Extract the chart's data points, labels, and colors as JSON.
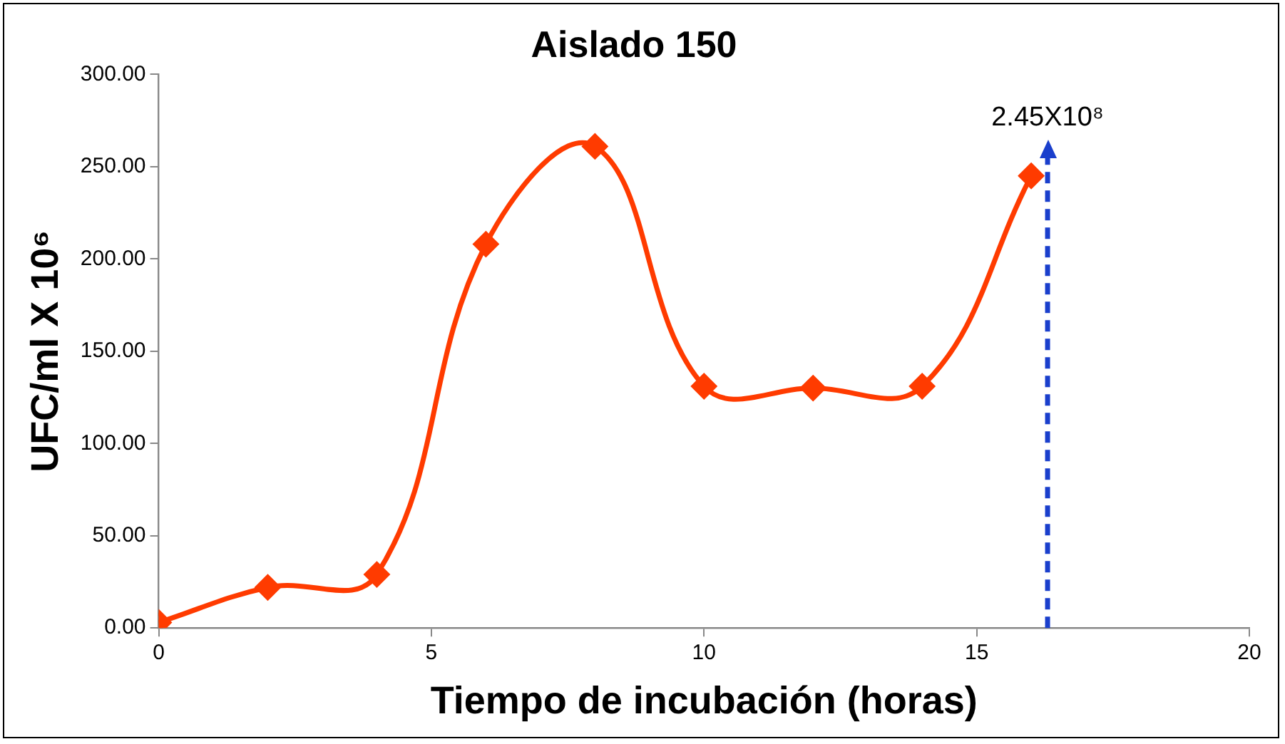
{
  "chart_data": {
    "type": "line",
    "title": "Aislado 150",
    "xlabel": "Tiempo de incubación (horas)",
    "ylabel": "UFC/ml X 10⁶",
    "x": [
      0,
      2,
      4,
      6,
      8,
      10,
      12,
      14,
      16
    ],
    "series": [
      {
        "color": "#ff3b00",
        "values": [
          3,
          22,
          29,
          208,
          261,
          131,
          130,
          131,
          245
        ]
      }
    ],
    "xlim": [
      0,
      20
    ],
    "xticks": [
      0,
      5,
      10,
      15,
      20
    ],
    "ylim": [
      0,
      300
    ],
    "yticks": [
      {
        "value": 0,
        "label": "0.00"
      },
      {
        "value": 50,
        "label": "50.00"
      },
      {
        "value": 100,
        "label": "100.00"
      },
      {
        "value": 150,
        "label": "150.00"
      },
      {
        "value": 200,
        "label": "200.00"
      },
      {
        "value": 250,
        "label": "250.00"
      },
      {
        "value": 300,
        "label": "300.00"
      }
    ],
    "ref_lines": [
      {
        "axis": "x",
        "value": 16.3,
        "label": "2.45X10⁸",
        "color": "#1a3fcc",
        "line_style": "dashed"
      }
    ],
    "grid": false,
    "legend": false,
    "marker": "diamond",
    "line_style": "solid"
  }
}
